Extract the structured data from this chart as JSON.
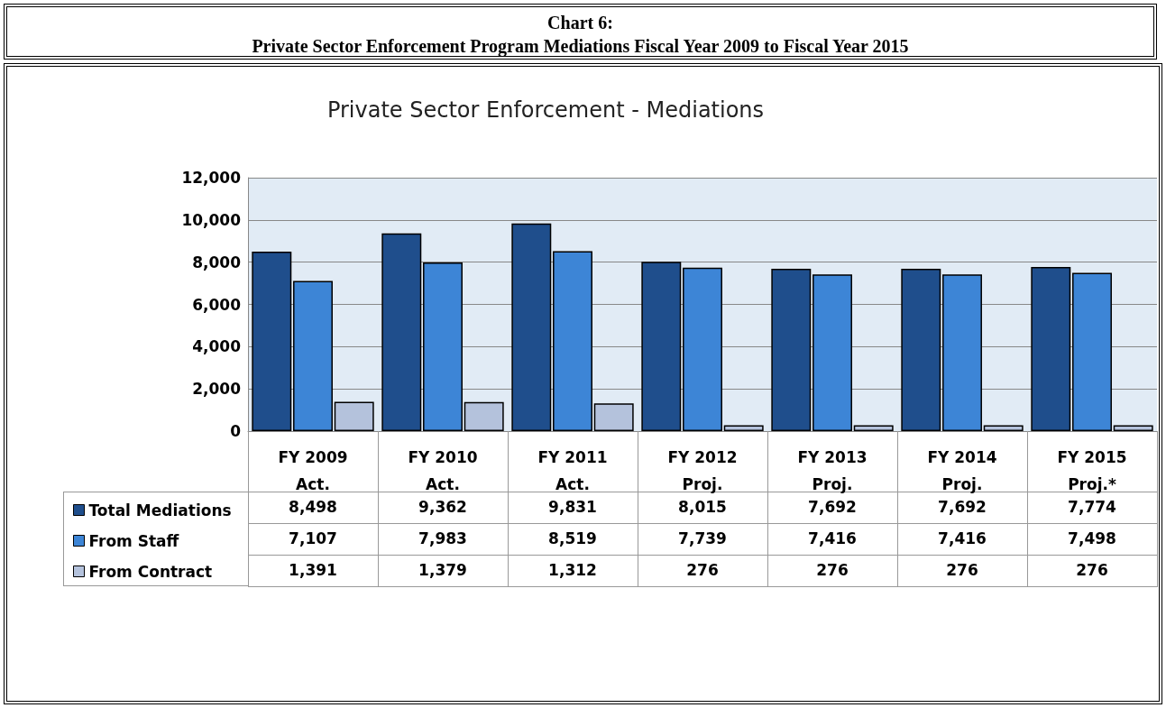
{
  "chart_data": {
    "type": "bar",
    "title": "Chart 6:\nPrivate Sector Enforcement Program Mediations Fiscal Year 2009 to Fiscal Year 2015",
    "subtitle": "Private Sector Enforcement - Mediations",
    "categories": [
      "FY 2009\nAct.",
      "FY 2010\nAct.",
      "FY 2011\nAct.",
      "FY 2012\nProj.",
      "FY 2013\nProj.",
      "FY 2014\nProj.",
      "FY 2015\nProj.*"
    ],
    "series": [
      {
        "name": "Total Mediations",
        "color": "#1f4e8c",
        "values": [
          8498,
          9362,
          9831,
          8015,
          7692,
          7692,
          7774
        ],
        "value_labels": [
          "8,498",
          "9,362",
          "9,831",
          "8,015",
          "7,692",
          "7,692",
          "7,774"
        ]
      },
      {
        "name": "From Staff",
        "color": "#3d85d6",
        "values": [
          7107,
          7983,
          8519,
          7739,
          7416,
          7416,
          7498
        ],
        "value_labels": [
          "7,107",
          "7,983",
          "8,519",
          "7,739",
          "7,416",
          "7,416",
          "7,498"
        ]
      },
      {
        "name": "From Contract",
        "color": "#b4c2dc",
        "values": [
          1391,
          1379,
          1312,
          276,
          276,
          276,
          276
        ],
        "value_labels": [
          "1,391",
          "1,379",
          "1,312",
          "276",
          "276",
          "276",
          "276"
        ]
      }
    ],
    "ylim": [
      0,
      12000
    ],
    "yticks": [
      0,
      {
        "value": 2000,
        "label": "2,000"
      },
      {
        "value": 4000,
        "label": "4,000"
      },
      {
        "value": 6000,
        "label": "6,000"
      },
      {
        "value": 8000,
        "label": "8,000"
      },
      {
        "value": 10000,
        "label": "10,000"
      },
      {
        "value": 12000,
        "label": "12,000"
      }
    ],
    "grid": "y",
    "legend": "bottom left"
  }
}
